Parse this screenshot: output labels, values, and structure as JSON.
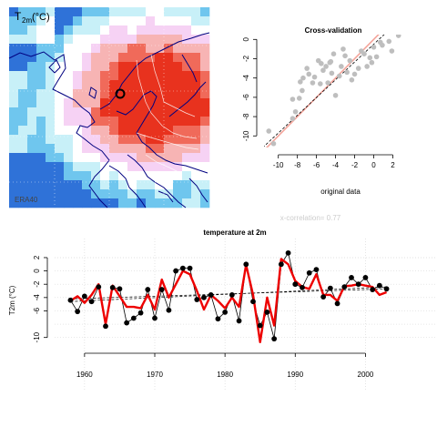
{
  "map_panel": {
    "title_main": "T",
    "title_sub": "2m",
    "title_unit": "(°C)",
    "source_label": "ERA40"
  },
  "colors": {
    "warm_strong": "#e8321e",
    "warm_mid": "#f06a5a",
    "warm_light": "#f7b4b4",
    "pink_light": "#f6d2f4",
    "cool_light": "#c8f0f8",
    "cool_mid": "#6fc6ee",
    "cool_strong": "#2f72d8",
    "coast": "#000080",
    "ref_line": "#f4a49a",
    "scatter_point": "#bebebe",
    "model_line": "#ee0000",
    "obs_point": "#000000"
  },
  "chart_data": [
    {
      "type": "scatter",
      "title": "Cross-validation",
      "xlabel": "original data",
      "ylabel": "",
      "xlim": [
        -11.5,
        3.2
      ],
      "ylim": [
        -11.2,
        0.5
      ],
      "xticks": [
        -10,
        -8,
        -6,
        -4,
        -2,
        0,
        2
      ],
      "yticks": [
        0,
        -2,
        -4,
        -6,
        -8,
        -10
      ],
      "ref_line": "y = x",
      "fit_line": {
        "slope": 0.92,
        "intercept": -0.5,
        "style": "dashed"
      },
      "points": [
        [
          -10.5,
          -10.8
        ],
        [
          -11,
          -9.5
        ],
        [
          -8.5,
          -8.2
        ],
        [
          -8.2,
          -7.5
        ],
        [
          -8.5,
          -6.2
        ],
        [
          -7.8,
          -6.1
        ],
        [
          -7.5,
          -5.3
        ],
        [
          -7.7,
          -4.4
        ],
        [
          -7.4,
          -4.0
        ],
        [
          -6.8,
          -3.6
        ],
        [
          -7.0,
          -3.0
        ],
        [
          -6.4,
          -4.5
        ],
        [
          -6.2,
          -3.9
        ],
        [
          -5.8,
          -2.2
        ],
        [
          -5.5,
          -2.5
        ],
        [
          -5.3,
          -3.2
        ],
        [
          -5.0,
          -2.8
        ],
        [
          -4.8,
          -4.5
        ],
        [
          -4.6,
          -2.4
        ],
        [
          -4.4,
          -3.5
        ],
        [
          -4.2,
          -1.5
        ],
        [
          -4.0,
          -5.8
        ],
        [
          -3.6,
          -3.8
        ],
        [
          -3.4,
          -2.8
        ],
        [
          -3.0,
          -1.7
        ],
        [
          -2.8,
          -3.4
        ],
        [
          -2.5,
          -2.2
        ],
        [
          -2.3,
          -4.2
        ],
        [
          -2.0,
          -3.6
        ],
        [
          -1.6,
          -3.0
        ],
        [
          -1.3,
          -1.2
        ],
        [
          -1.0,
          -1.5
        ],
        [
          -0.7,
          -2.8
        ],
        [
          -0.4,
          -1.9
        ],
        [
          -0.2,
          -2.4
        ],
        [
          0.0,
          -0.8
        ],
        [
          0.3,
          -1.8
        ],
        [
          0.7,
          -0.3
        ],
        [
          0.9,
          -0.6
        ],
        [
          1.6,
          -0.2
        ],
        [
          1.9,
          -1.2
        ],
        [
          2.6,
          0.4
        ],
        [
          -4.5,
          -2.3
        ],
        [
          -3.2,
          -1.0
        ],
        [
          -5.6,
          -4.6
        ]
      ],
      "annotation": "x-correlation= 0.77"
    },
    {
      "type": "line",
      "title": "temperature at 2m",
      "xlabel": "",
      "ylabel": "T2m (°C)",
      "xlim": [
        1956,
        2005
      ],
      "ylim": [
        -11,
        3.5
      ],
      "xticks": [
        1960,
        1970,
        1980,
        1990,
        2000
      ],
      "yticks": [
        2,
        0,
        -2,
        -4,
        -6,
        -10
      ],
      "grid": true,
      "years": [
        1958,
        1959,
        1960,
        1961,
        1962,
        1963,
        1964,
        1965,
        1966,
        1967,
        1968,
        1969,
        1970,
        1971,
        1972,
        1973,
        1974,
        1975,
        1976,
        1977,
        1978,
        1979,
        1980,
        1981,
        1982,
        1983,
        1984,
        1985,
        1986,
        1987,
        1988,
        1989,
        1990,
        1991,
        1992,
        1993,
        1994,
        1995,
        1996,
        1997,
        1998,
        1999,
        2000,
        2001,
        2002,
        2003
      ],
      "series": [
        {
          "values": [
            -4.4,
            -6.1,
            -3.8,
            -4.6,
            -2.4,
            -8.3,
            -2.5,
            -2.7,
            -7.8,
            -7.1,
            -6.3,
            -2.8,
            -7.1,
            -2.8,
            -5.9,
            0.0,
            0.4,
            0.4,
            -4.3,
            -4.0,
            -3.6,
            -7.2,
            -6.2,
            -3.6,
            -7.5,
            1.0,
            -4.6,
            -8.2,
            -6.2,
            -10.2,
            1.0,
            2.7,
            -2.0,
            -2.5,
            -0.3,
            0.2,
            -3.9,
            -2.6,
            -4.9,
            -2.4,
            -1.0,
            -2.0,
            -1.0,
            -2.8,
            -2.2,
            -2.7
          ]
        },
        {
          "values": [
            -4.5,
            -3.8,
            -4.8,
            -3.6,
            -2.0,
            -8.0,
            -2.2,
            -3.8,
            -5.4,
            -5.4,
            -5.6,
            -3.6,
            -5.8,
            -1.3,
            -4.0,
            -2.0,
            0.0,
            -0.5,
            -3.0,
            -5.8,
            -3.6,
            -4.5,
            -5.6,
            -4.0,
            -5.4,
            0.9,
            -3.6,
            -10.7,
            -4.0,
            -8.2,
            1.8,
            1.0,
            -1.5,
            -2.4,
            -2.7,
            -0.5,
            -3.6,
            -3.6,
            -4.5,
            -2.3,
            -2.2,
            -2.0,
            -2.2,
            -2.4,
            -3.6,
            -3.2
          ]
        }
      ],
      "trend_lines": [
        {
          "start": [
            1958,
            -4.6
          ],
          "end": [
            2003,
            -2.4
          ],
          "style": "dashed"
        },
        {
          "start": [
            1958,
            -4.2
          ],
          "end": [
            2003,
            -2.7
          ],
          "style": "dashed"
        }
      ]
    }
  ]
}
